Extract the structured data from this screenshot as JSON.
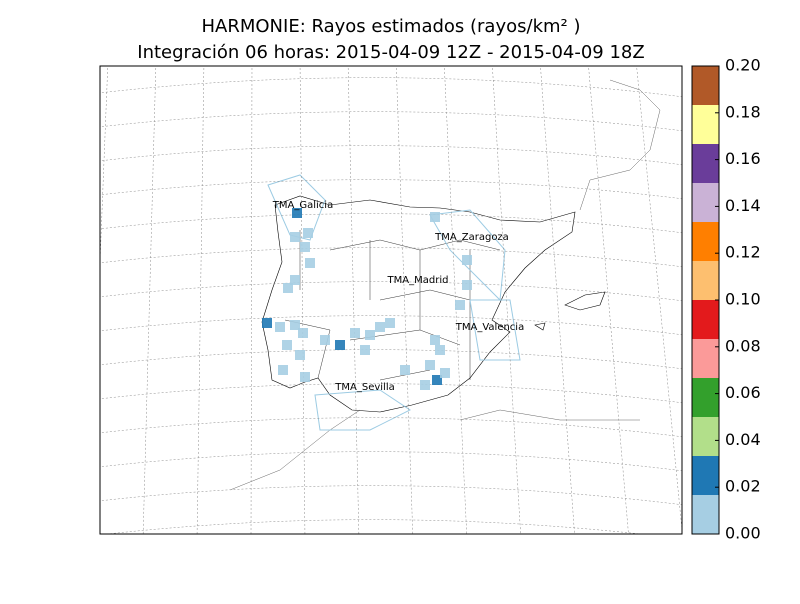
{
  "title": "HARMONIE: Rayos estimados (rayos/km² )",
  "subtitle": "Integración 06 horas: 2015-04-09 12Z - 2015-04-09 18Z",
  "regions": [
    "TMA_Galicia",
    "TMA_Zaragoza",
    "TMA_Madrid",
    "TMA_Valencia",
    "TMA_Sevilla"
  ],
  "colorbar": {
    "lim": [
      0,
      0.2
    ],
    "ticks": [
      {
        "value": 0,
        "label": "0.00"
      },
      {
        "value": 0.02,
        "label": "0.02"
      },
      {
        "value": 0.04,
        "label": "0.04"
      },
      {
        "value": 0.06,
        "label": "0.06"
      },
      {
        "value": 0.08,
        "label": "0.08"
      },
      {
        "value": 0.1,
        "label": "0.10"
      },
      {
        "value": 0.12,
        "label": "0.12"
      },
      {
        "value": 0.14,
        "label": "0.14"
      },
      {
        "value": 0.16,
        "label": "0.16"
      },
      {
        "value": 0.18,
        "label": "0.18"
      },
      {
        "value": 0.2,
        "label": "0.20"
      }
    ],
    "colors": [
      "#a6cee3",
      "#1f78b4",
      "#b2df8a",
      "#33a02c",
      "#fb9a99",
      "#e31a1c",
      "#fdbf6f",
      "#ff7f00",
      "#cab2d6",
      "#6a3d9a",
      "#ffff99",
      "#b15928"
    ]
  }
}
